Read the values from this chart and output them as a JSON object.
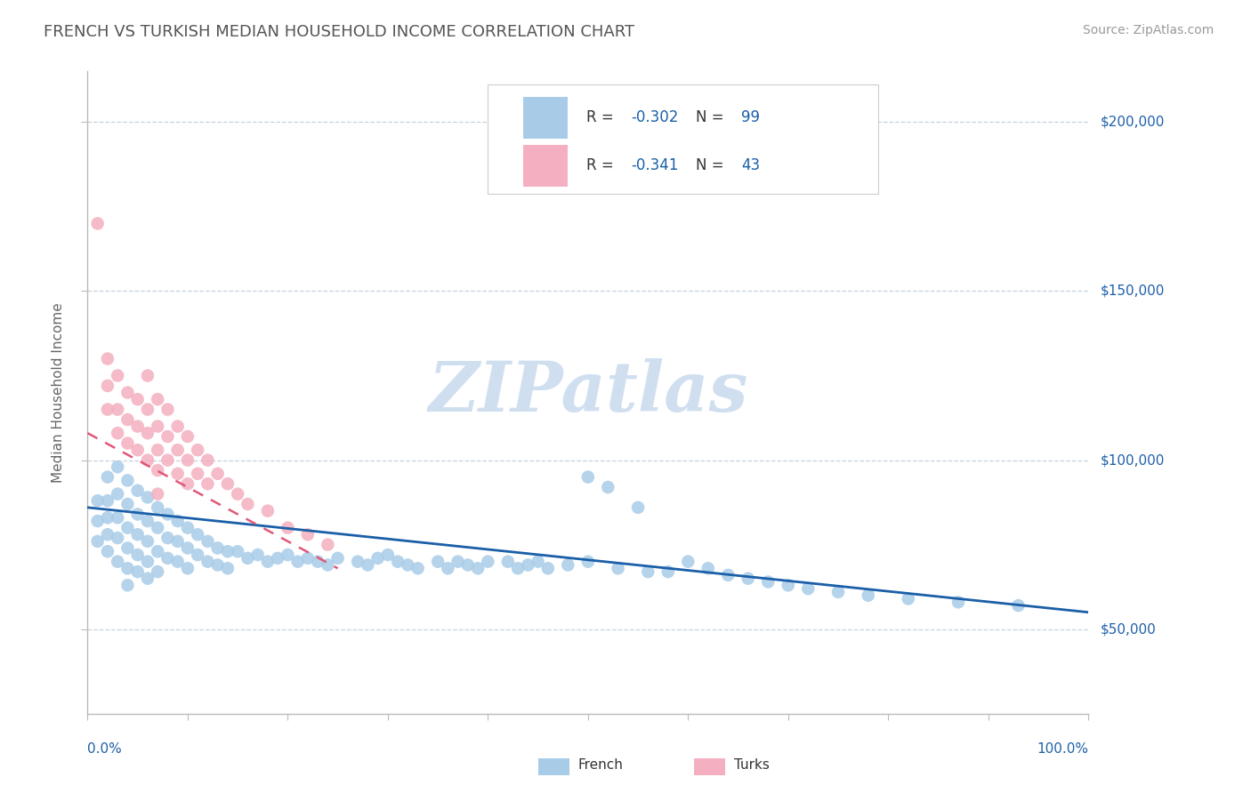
{
  "title": "FRENCH VS TURKISH MEDIAN HOUSEHOLD INCOME CORRELATION CHART",
  "source": "Source: ZipAtlas.com",
  "ylabel": "Median Household Income",
  "xlim": [
    0.0,
    1.0
  ],
  "ylim": [
    25000,
    215000
  ],
  "y_ticks": [
    50000,
    100000,
    150000,
    200000
  ],
  "y_tick_labels": [
    "$50,000",
    "$100,000",
    "$150,000",
    "$200,000"
  ],
  "french_color": "#a8cce8",
  "turks_color": "#f4afc0",
  "french_line_color": "#1a5fa8",
  "turks_line_color": "#e05878",
  "french_R": -0.302,
  "french_N": 99,
  "turks_R": -0.341,
  "turks_N": 43,
  "watermark": "ZIPatlas",
  "watermark_color": "#d0dff0",
  "french_trend_x0": 0.0,
  "french_trend_y0": 86000,
  "french_trend_x1": 1.0,
  "french_trend_y1": 55000,
  "turks_trend_x0": 0.0,
  "turks_trend_y0": 108000,
  "turks_trend_x1": 0.25,
  "turks_trend_y1": 68000,
  "french_scatter_x": [
    0.01,
    0.01,
    0.01,
    0.02,
    0.02,
    0.02,
    0.02,
    0.02,
    0.03,
    0.03,
    0.03,
    0.03,
    0.03,
    0.04,
    0.04,
    0.04,
    0.04,
    0.04,
    0.04,
    0.05,
    0.05,
    0.05,
    0.05,
    0.05,
    0.06,
    0.06,
    0.06,
    0.06,
    0.06,
    0.07,
    0.07,
    0.07,
    0.07,
    0.08,
    0.08,
    0.08,
    0.09,
    0.09,
    0.09,
    0.1,
    0.1,
    0.1,
    0.11,
    0.11,
    0.12,
    0.12,
    0.13,
    0.13,
    0.14,
    0.14,
    0.15,
    0.16,
    0.17,
    0.18,
    0.19,
    0.2,
    0.21,
    0.22,
    0.23,
    0.24,
    0.25,
    0.27,
    0.28,
    0.29,
    0.3,
    0.31,
    0.32,
    0.33,
    0.35,
    0.36,
    0.37,
    0.38,
    0.39,
    0.4,
    0.42,
    0.43,
    0.44,
    0.45,
    0.46,
    0.48,
    0.5,
    0.5,
    0.52,
    0.53,
    0.55,
    0.56,
    0.58,
    0.6,
    0.62,
    0.64,
    0.66,
    0.68,
    0.7,
    0.72,
    0.75,
    0.78,
    0.82,
    0.87,
    0.93
  ],
  "french_scatter_y": [
    88000,
    82000,
    76000,
    95000,
    88000,
    83000,
    78000,
    73000,
    98000,
    90000,
    83000,
    77000,
    70000,
    94000,
    87000,
    80000,
    74000,
    68000,
    63000,
    91000,
    84000,
    78000,
    72000,
    67000,
    89000,
    82000,
    76000,
    70000,
    65000,
    86000,
    80000,
    73000,
    67000,
    84000,
    77000,
    71000,
    82000,
    76000,
    70000,
    80000,
    74000,
    68000,
    78000,
    72000,
    76000,
    70000,
    74000,
    69000,
    73000,
    68000,
    73000,
    71000,
    72000,
    70000,
    71000,
    72000,
    70000,
    71000,
    70000,
    69000,
    71000,
    70000,
    69000,
    71000,
    72000,
    70000,
    69000,
    68000,
    70000,
    68000,
    70000,
    69000,
    68000,
    70000,
    70000,
    68000,
    69000,
    70000,
    68000,
    69000,
    95000,
    70000,
    92000,
    68000,
    86000,
    67000,
    67000,
    70000,
    68000,
    66000,
    65000,
    64000,
    63000,
    62000,
    61000,
    60000,
    59000,
    58000,
    57000
  ],
  "turks_scatter_x": [
    0.01,
    0.02,
    0.02,
    0.02,
    0.03,
    0.03,
    0.03,
    0.04,
    0.04,
    0.04,
    0.05,
    0.05,
    0.05,
    0.06,
    0.06,
    0.06,
    0.06,
    0.07,
    0.07,
    0.07,
    0.07,
    0.07,
    0.08,
    0.08,
    0.08,
    0.09,
    0.09,
    0.09,
    0.1,
    0.1,
    0.1,
    0.11,
    0.11,
    0.12,
    0.12,
    0.13,
    0.14,
    0.15,
    0.16,
    0.18,
    0.2,
    0.22,
    0.24
  ],
  "turks_scatter_y": [
    170000,
    130000,
    122000,
    115000,
    125000,
    115000,
    108000,
    120000,
    112000,
    105000,
    118000,
    110000,
    103000,
    125000,
    115000,
    108000,
    100000,
    118000,
    110000,
    103000,
    97000,
    90000,
    115000,
    107000,
    100000,
    110000,
    103000,
    96000,
    107000,
    100000,
    93000,
    103000,
    96000,
    100000,
    93000,
    96000,
    93000,
    90000,
    87000,
    85000,
    80000,
    78000,
    75000
  ]
}
